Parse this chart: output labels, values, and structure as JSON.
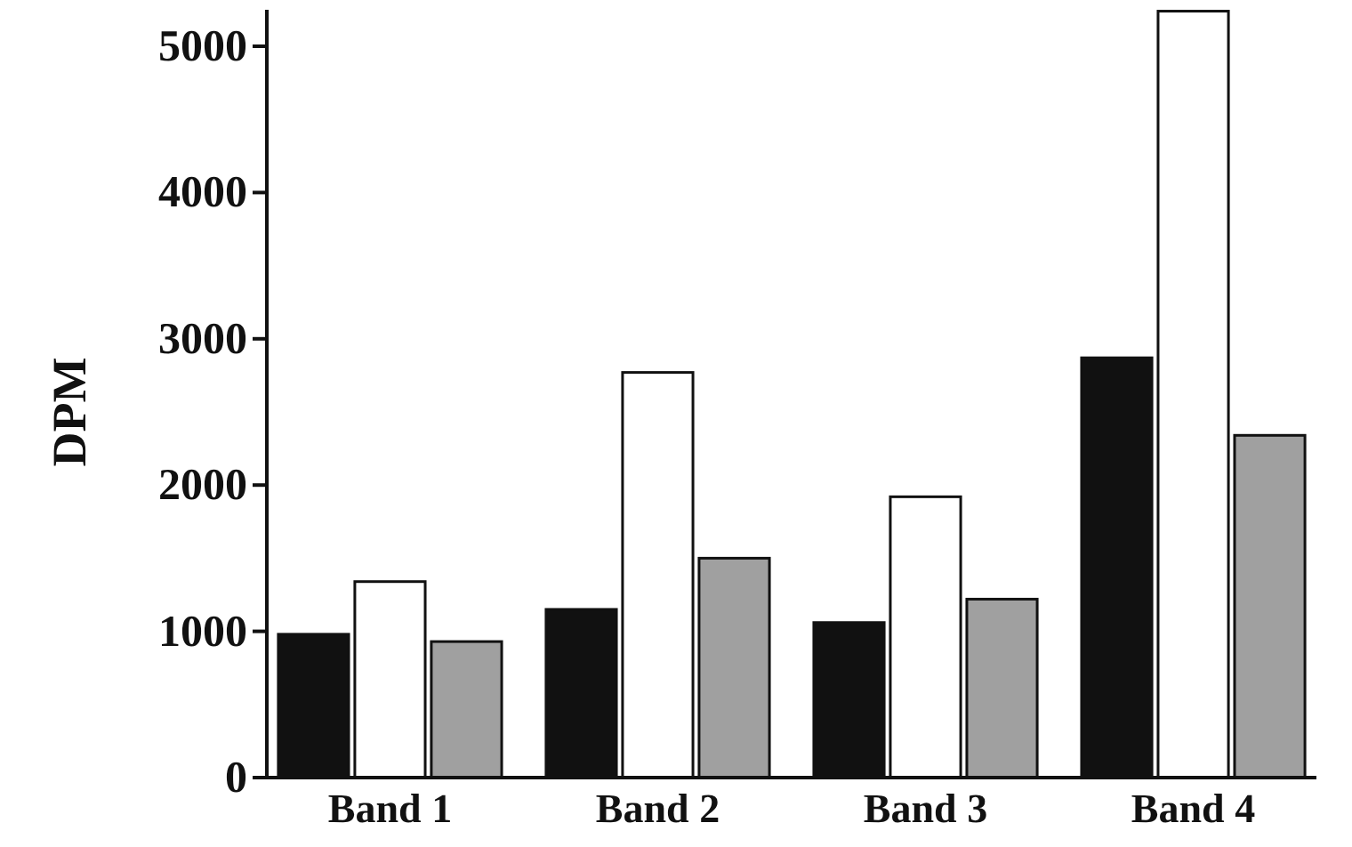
{
  "chart_data": {
    "type": "bar",
    "ylabel": "DPM",
    "categories": [
      "Band 1",
      "Band 2",
      "Band 3",
      "Band 4"
    ],
    "series": [
      {
        "color": "#111111",
        "values": [
          980,
          1150,
          1060,
          2870
        ]
      },
      {
        "color": "#ffffff",
        "values": [
          1340,
          2770,
          1920,
          5240
        ]
      },
      {
        "color": "#a0a0a0",
        "values": [
          930,
          1500,
          1220,
          2340
        ]
      }
    ],
    "ylim": [
      0,
      5250
    ],
    "yticks": [
      0,
      1000,
      2000,
      3000,
      4000,
      5000
    ],
    "grid": false
  }
}
